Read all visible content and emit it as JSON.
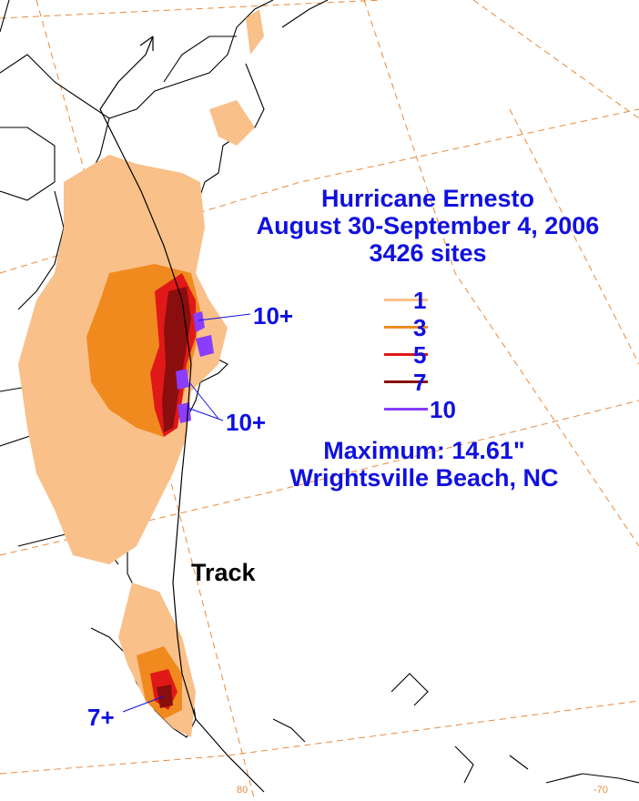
{
  "title": {
    "line1": "Hurricane Ernesto",
    "line2": "August 30-September 4, 2006",
    "line3": "3426 sites"
  },
  "legend": [
    {
      "label": "1",
      "color": "#f9c08a"
    },
    {
      "label": "3",
      "color": "#f08a1e"
    },
    {
      "label": "5",
      "color": "#e01818"
    },
    {
      "label": "7",
      "color": "#8b0e0e"
    },
    {
      "label": "10",
      "color": "#8a3cff"
    }
  ],
  "callouts": {
    "north": "10+",
    "nc": "10+",
    "florida": "7+"
  },
  "track_label": "Track",
  "maximum": {
    "line1": "Maximum: 14.61\"",
    "line2": "Wrightsville Beach, NC"
  },
  "grid_labels": {
    "bottom_center": "80",
    "bottom_right": "-70"
  },
  "colors": {
    "text_blue": "#1010e0",
    "grid_orange": "#e88a3c"
  }
}
